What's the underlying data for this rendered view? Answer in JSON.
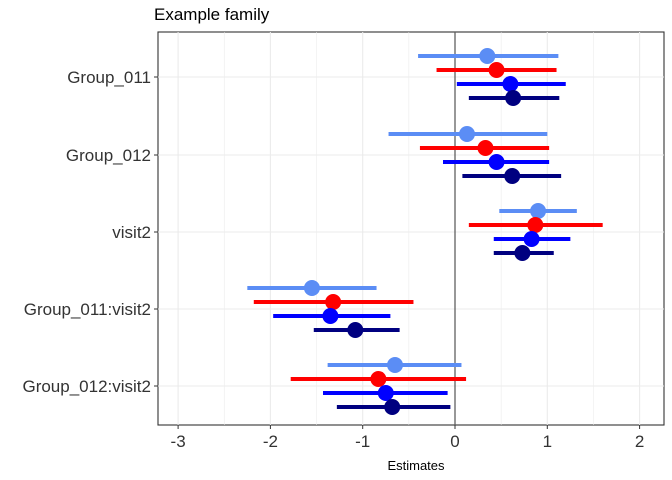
{
  "chart_data": {
    "type": "forest",
    "title": "Example family",
    "xlabel": "Estimates",
    "ylabel": "",
    "xlim": [
      -3.3,
      2.3
    ],
    "xticks": [
      -3,
      -2,
      -1,
      0,
      1,
      2
    ],
    "xtick_labels": [
      "-3",
      "-2",
      "-1",
      "0",
      "1",
      "2"
    ],
    "reference_line": 0,
    "grid": true,
    "legend": "none",
    "categories": [
      "Group_011",
      "Group_012",
      "visit2",
      "Group_011:visit2",
      "Group_012:visit2"
    ],
    "series": [
      {
        "color": "#5B8DF5",
        "estimates": [
          0.35,
          0.13,
          0.9,
          -1.55,
          -0.65
        ],
        "lower": [
          -0.4,
          -0.72,
          0.48,
          -2.25,
          -1.38
        ],
        "upper": [
          1.12,
          1.0,
          1.32,
          -0.85,
          0.07
        ]
      },
      {
        "color": "#FF0000",
        "estimates": [
          0.45,
          0.33,
          0.87,
          -1.32,
          -0.83
        ],
        "lower": [
          -0.2,
          -0.38,
          0.15,
          -2.18,
          -1.78
        ],
        "upper": [
          1.1,
          1.02,
          1.6,
          -0.45,
          0.12
        ]
      },
      {
        "color": "#0000FF",
        "estimates": [
          0.6,
          0.45,
          0.83,
          -1.35,
          -0.75
        ],
        "lower": [
          0.02,
          -0.13,
          0.42,
          -1.97,
          -1.43
        ],
        "upper": [
          1.2,
          1.02,
          1.25,
          -0.7,
          -0.08
        ]
      },
      {
        "color": "#000080",
        "estimates": [
          0.63,
          0.62,
          0.73,
          -1.08,
          -0.68
        ],
        "lower": [
          0.15,
          0.08,
          0.42,
          -1.53,
          -1.28
        ],
        "upper": [
          1.13,
          1.15,
          1.07,
          -0.6,
          -0.05
        ]
      }
    ]
  }
}
